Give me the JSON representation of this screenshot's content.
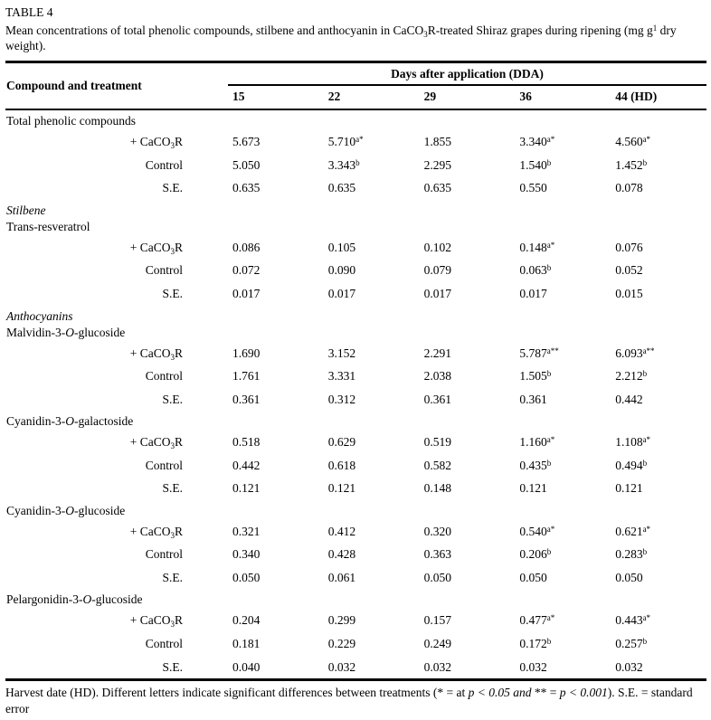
{
  "table": {
    "label": "TABLE 4",
    "caption": [
      {
        "t": "Mean concentrations of total phenolic compounds, stilbene and anthocyanin in CaCO"
      },
      {
        "t": "3",
        "s": "sub"
      },
      {
        "t": "R-treated Shiraz grapes during ripening (mg g"
      },
      {
        "t": "1",
        "s": "sup"
      },
      {
        "t": " dry weight)."
      }
    ],
    "header": {
      "compound_col": "Compound and treatment",
      "span_label": "Days after application (DDA)",
      "day_cols": [
        "15",
        "22",
        "29",
        "36",
        "44 (HD)"
      ]
    },
    "row_labels": {
      "treatment": [
        {
          "t": "+ CaCO"
        },
        {
          "t": "3",
          "s": "sub"
        },
        {
          "t": "R"
        }
      ],
      "control": [
        {
          "t": "Control"
        }
      ],
      "se": [
        {
          "t": "S.E."
        }
      ]
    },
    "sections": [
      {
        "heading_lines": [
          [
            {
              "t": "Total phenolic compounds"
            }
          ]
        ],
        "rows": [
          {
            "label": "treatment",
            "cells": [
              {
                "v": "5.673"
              },
              {
                "v": "5.710",
                "sup": "a*"
              },
              {
                "v": "1.855"
              },
              {
                "v": "3.340",
                "sup": "a*"
              },
              {
                "v": "4.560",
                "sup": "a*"
              }
            ]
          },
          {
            "label": "control",
            "cells": [
              {
                "v": "5.050"
              },
              {
                "v": "3.343",
                "sup": "b"
              },
              {
                "v": "2.295"
              },
              {
                "v": "1.540",
                "sup": "b"
              },
              {
                "v": "1.452",
                "sup": "b"
              }
            ]
          },
          {
            "label": "se",
            "cells": [
              {
                "v": "0.635"
              },
              {
                "v": "0.635"
              },
              {
                "v": "0.635"
              },
              {
                "v": "0.550"
              },
              {
                "v": "0.078"
              }
            ]
          }
        ]
      },
      {
        "heading_lines": [
          [
            {
              "t": "Stilbene",
              "s": "i"
            }
          ],
          [
            {
              "t": "Trans-resveratrol"
            }
          ]
        ],
        "rows": [
          {
            "label": "treatment",
            "cells": [
              {
                "v": "0.086"
              },
              {
                "v": "0.105"
              },
              {
                "v": "0.102"
              },
              {
                "v": "0.148",
                "sup": "a*"
              },
              {
                "v": "0.076"
              }
            ]
          },
          {
            "label": "control",
            "cells": [
              {
                "v": "0.072"
              },
              {
                "v": "0.090"
              },
              {
                "v": "0.079"
              },
              {
                "v": "0.063",
                "sup": "b"
              },
              {
                "v": "0.052"
              }
            ]
          },
          {
            "label": "se",
            "cells": [
              {
                "v": "0.017"
              },
              {
                "v": "0.017"
              },
              {
                "v": "0.017"
              },
              {
                "v": "0.017"
              },
              {
                "v": "0.015"
              }
            ]
          }
        ]
      },
      {
        "heading_lines": [
          [
            {
              "t": "Anthocyanins",
              "s": "i"
            }
          ],
          [
            {
              "t": "Malvidin-3-"
            },
            {
              "t": "O",
              "s": "i"
            },
            {
              "t": "-glucoside"
            }
          ]
        ],
        "rows": [
          {
            "label": "treatment",
            "cells": [
              {
                "v": "1.690"
              },
              {
                "v": "3.152"
              },
              {
                "v": "2.291"
              },
              {
                "v": "5.787",
                "sup": "a**"
              },
              {
                "v": "6.093",
                "sup": "a**"
              }
            ]
          },
          {
            "label": "control",
            "cells": [
              {
                "v": "1.761"
              },
              {
                "v": "3.331"
              },
              {
                "v": "2.038"
              },
              {
                "v": "1.505",
                "sup": "b"
              },
              {
                "v": "2.212",
                "sup": "b"
              }
            ]
          },
          {
            "label": "se",
            "cells": [
              {
                "v": "0.361"
              },
              {
                "v": "0.312"
              },
              {
                "v": "0.361"
              },
              {
                "v": "0.361"
              },
              {
                "v": "0.442"
              }
            ]
          }
        ]
      },
      {
        "heading_lines": [
          [
            {
              "t": "Cyanidin-3-"
            },
            {
              "t": "O",
              "s": "i"
            },
            {
              "t": "-galactoside"
            }
          ]
        ],
        "rows": [
          {
            "label": "treatment",
            "cells": [
              {
                "v": "0.518"
              },
              {
                "v": "0.629"
              },
              {
                "v": "0.519"
              },
              {
                "v": "1.160",
                "sup": "a*"
              },
              {
                "v": "1.108",
                "sup": "a*"
              }
            ]
          },
          {
            "label": "control",
            "cells": [
              {
                "v": "0.442"
              },
              {
                "v": "0.618"
              },
              {
                "v": "0.582"
              },
              {
                "v": "0.435",
                "sup": "b"
              },
              {
                "v": "0.494",
                "sup": "b"
              }
            ]
          },
          {
            "label": "se",
            "cells": [
              {
                "v": "0.121"
              },
              {
                "v": "0.121"
              },
              {
                "v": "0.148"
              },
              {
                "v": "0.121"
              },
              {
                "v": "0.121"
              }
            ]
          }
        ]
      },
      {
        "heading_lines": [
          [
            {
              "t": "Cyanidin-3-"
            },
            {
              "t": "O",
              "s": "i"
            },
            {
              "t": "-glucoside"
            }
          ]
        ],
        "rows": [
          {
            "label": "treatment",
            "cells": [
              {
                "v": "0.321"
              },
              {
                "v": "0.412"
              },
              {
                "v": "0.320"
              },
              {
                "v": "0.540",
                "sup": "a*"
              },
              {
                "v": "0.621",
                "sup": "a*"
              }
            ]
          },
          {
            "label": "control",
            "cells": [
              {
                "v": "0.340"
              },
              {
                "v": "0.428"
              },
              {
                "v": "0.363"
              },
              {
                "v": "0.206",
                "sup": "b"
              },
              {
                "v": "0.283",
                "sup": "b"
              }
            ]
          },
          {
            "label": "se",
            "cells": [
              {
                "v": "0.050"
              },
              {
                "v": "0.061"
              },
              {
                "v": "0.050"
              },
              {
                "v": "0.050"
              },
              {
                "v": "0.050"
              }
            ]
          }
        ]
      },
      {
        "heading_lines": [
          [
            {
              "t": "Pelargonidin-3-"
            },
            {
              "t": "O",
              "s": "i"
            },
            {
              "t": "-glucoside"
            }
          ]
        ],
        "rows": [
          {
            "label": "treatment",
            "cells": [
              {
                "v": "0.204"
              },
              {
                "v": "0.299"
              },
              {
                "v": "0.157"
              },
              {
                "v": "0.477",
                "sup": "a*"
              },
              {
                "v": "0.443",
                "sup": "a*"
              }
            ]
          },
          {
            "label": "control",
            "cells": [
              {
                "v": "0.181"
              },
              {
                "v": "0.229"
              },
              {
                "v": "0.249"
              },
              {
                "v": "0.172",
                "sup": "b"
              },
              {
                "v": "0.257",
                "sup": "b"
              }
            ]
          },
          {
            "label": "se",
            "cells": [
              {
                "v": "0.040"
              },
              {
                "v": "0.032"
              },
              {
                "v": "0.032"
              },
              {
                "v": "0.032"
              },
              {
                "v": "0.032"
              }
            ]
          }
        ]
      }
    ],
    "footnote": [
      {
        "t": "Harvest date (HD). Different letters indicate significant differences between treatments (* = at "
      },
      {
        "t": "p < 0.05 and",
        "s": "i"
      },
      {
        "t": " ** = "
      },
      {
        "t": "p < 0.001",
        "s": "i"
      },
      {
        "t": "). S.E. = standard error"
      }
    ]
  }
}
